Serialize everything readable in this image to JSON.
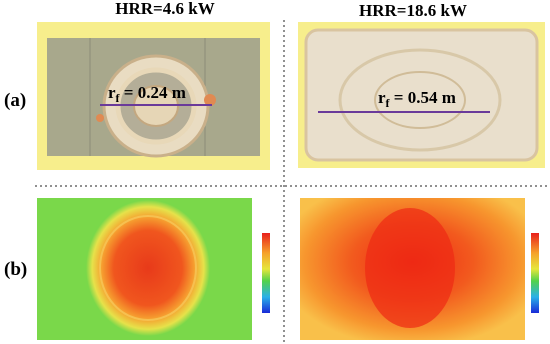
{
  "columns": [
    {
      "title": "HRR=4.6 kW"
    },
    {
      "title": "HRR=18.6 kW"
    }
  ],
  "rows": [
    {
      "label": "(a)"
    },
    {
      "label": "(b)"
    }
  ],
  "annotations": [
    {
      "symbol": "r",
      "subscript": "f",
      "text": " = 0.24 m"
    },
    {
      "symbol": "r",
      "subscript": "f",
      "text": " = 0.54 m"
    }
  ]
}
